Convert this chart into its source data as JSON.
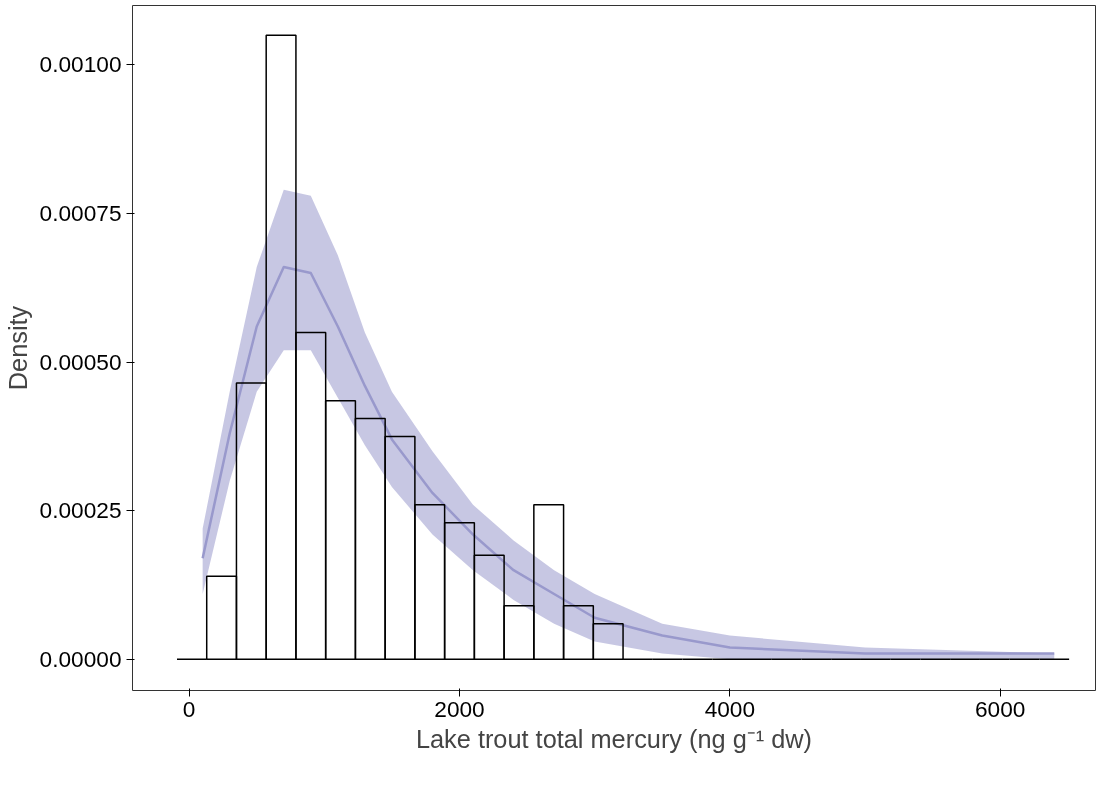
{
  "chart_data": {
    "type": "histogram",
    "xlabel": "Lake trout total mercury (ng g⁻¹ dw)",
    "ylabel": "Density",
    "xlim": [
      -419,
      6705
    ],
    "ylim": [
      -5.24e-05,
      0.0011
    ],
    "xticks": [
      0,
      2000,
      4000,
      6000
    ],
    "yticks": [
      {
        "value": 0,
        "label": "0.00000"
      },
      {
        "value": 0.00025,
        "label": "0.00025"
      },
      {
        "value": 0.0005,
        "label": "0.00050"
      },
      {
        "value": 0.00075,
        "label": "0.00075"
      },
      {
        "value": 0.001,
        "label": "0.00100"
      }
    ],
    "grid": false,
    "series": [
      {
        "type": "line",
        "color": "#9999cc",
        "x": [
          100,
          300,
          500,
          700,
          900,
          1100,
          1300,
          1500,
          1800,
          2100,
          2400,
          2700,
          3000,
          3500,
          4000,
          5000,
          6400
        ],
        "values": [
          0.00017,
          0.00038,
          0.00056,
          0.00066,
          0.00065,
          0.00056,
          0.00046,
          0.00037,
          0.00028,
          0.00021,
          0.00015,
          0.00011,
          7e-05,
          4e-05,
          2e-05,
          1e-05,
          1e-05
        ],
        "lower": [
          0.00011,
          0.0003,
          0.00045,
          0.00052,
          0.00052,
          0.00044,
          0.00036,
          0.00029,
          0.00021,
          0.00015,
          0.0001,
          6e-05,
          3e-05,
          1e-05,
          0,
          0,
          0
        ],
        "upper": [
          0.00022,
          0.00045,
          0.00066,
          0.00079,
          0.00078,
          0.00068,
          0.00055,
          0.00045,
          0.00035,
          0.00026,
          0.0002,
          0.00015,
          0.00011,
          6e-05,
          4e-05,
          2e-05,
          1e-05
        ]
      },
      {
        "color": "#000000",
        "bins": [
          -90,
          130,
          350,
          570,
          790,
          1010,
          1230,
          1450,
          1670,
          1890,
          2110,
          2330,
          2550,
          2770,
          2990,
          3210,
          3430,
          3650,
          3870,
          4090,
          4310,
          4530,
          4750,
          4970,
          5190,
          5410,
          5630,
          5850,
          6070,
          6290,
          6510
        ],
        "values": [
          0,
          0.00014,
          0.000465,
          0.00105,
          0.00055,
          0.000435,
          0.000405,
          0.000375,
          0.00026,
          0.00023,
          0.000175,
          9e-05,
          0.00026,
          9e-05,
          6e-05,
          0,
          0,
          0,
          0,
          0,
          0,
          0,
          0,
          0,
          0,
          0,
          0,
          0,
          0,
          0
        ]
      }
    ]
  }
}
